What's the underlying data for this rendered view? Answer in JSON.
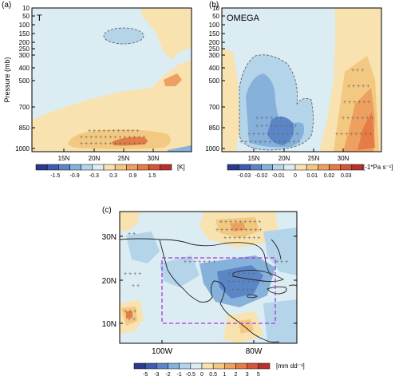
{
  "panels": {
    "a": {
      "tag": "(a)",
      "var_label": "T",
      "ylabel": "Pressure (mb)",
      "y_ticks": [
        "10",
        "50",
        "100",
        "150",
        "200",
        "250",
        "300",
        "400",
        "500",
        "700",
        "850",
        "1000"
      ],
      "x_ticks": [
        "15N",
        "20N",
        "25N",
        "30N"
      ],
      "colorbar": {
        "ticks": [
          "-1.5",
          "-0.9",
          "-0.3",
          "0.3",
          "0.9",
          "1.5"
        ],
        "unit": "[K]",
        "colors": [
          "#2c3a8c",
          "#3d5cb0",
          "#5a86c8",
          "#86b1da",
          "#b4d4ea",
          "#dcecf3",
          "#f7e2b0",
          "#f3c880",
          "#eea060",
          "#e57c46",
          "#d4553a",
          "#b9312d"
        ]
      }
    },
    "b": {
      "tag": "(b)",
      "var_label": "OMEGA",
      "y_ticks": [
        "10",
        "50",
        "100",
        "150",
        "200",
        "250",
        "300",
        "400",
        "500",
        "700",
        "850",
        "1000"
      ],
      "x_ticks": [
        "15N",
        "20N",
        "25N",
        "30N"
      ],
      "colorbar": {
        "ticks": [
          "-0.03",
          "-0.02",
          "-0.01",
          "0",
          "0.01",
          "0.02",
          "0.03"
        ],
        "unit": "[-1*Pa s⁻¹]",
        "colors": [
          "#2c3a8c",
          "#3d5cb0",
          "#5a86c8",
          "#86b1da",
          "#b4d4ea",
          "#dcecf3",
          "#f7e2b0",
          "#f3c880",
          "#eea060",
          "#e57c46",
          "#d4553a",
          "#b9312d"
        ]
      }
    },
    "c": {
      "tag": "(c)",
      "y_ticks": [
        "30N",
        "20N",
        "10N"
      ],
      "x_ticks": [
        "100W",
        "80W"
      ],
      "colorbar": {
        "ticks": [
          "-5",
          "-3",
          "-2",
          "-1",
          "-0.5",
          "0",
          "0.5",
          "1",
          "2",
          "3",
          "5"
        ],
        "unit": "[mm dd⁻¹]",
        "colors": [
          "#2c3a8c",
          "#3d5cb0",
          "#5a86c8",
          "#86b1da",
          "#b4d4ea",
          "#dcecf3",
          "#f7e2b0",
          "#f3c880",
          "#eea060",
          "#e57c46",
          "#d4553a",
          "#b9312d"
        ]
      }
    }
  }
}
